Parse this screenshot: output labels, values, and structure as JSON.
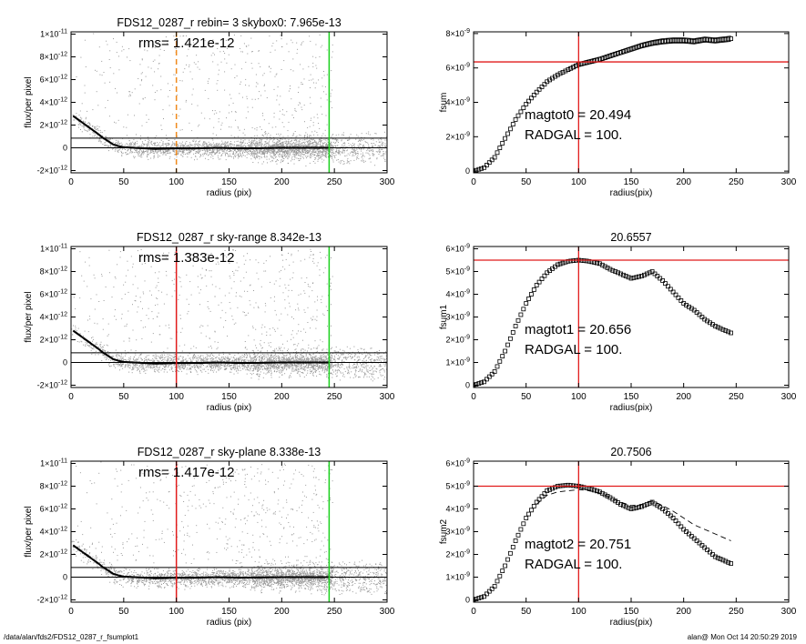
{
  "footer": {
    "left": "/data/alan/fds2/FDS12_0287_r_fsumplot1",
    "right": "alan@  Mon Oct 14 20:50:29 2019"
  },
  "colors": {
    "scatter": "#9a9a9a",
    "profile": "#000000",
    "red_line": "#e11b1b",
    "green_line": "#19d11c",
    "orange_dashed": "#f08a1c",
    "axis": "#000000"
  },
  "chart_data": [
    {
      "id": "flux1",
      "type": "scatter",
      "title": "FDS12_0287_r rebin= 3    skybox0:  7.965e-13",
      "xlabel": "radius (pix)",
      "ylabel": "flux/per pixel",
      "xlim": [
        0,
        300
      ],
      "ylim": [
        -2.2e-12,
        1.02e-11
      ],
      "xticks": [
        0,
        50,
        100,
        150,
        200,
        250,
        300
      ],
      "yticks": [
        {
          "value": 1e-11,
          "mant": "1×10",
          "exp": "-11"
        },
        {
          "value": 8e-12,
          "mant": "8×10",
          "exp": "-12"
        },
        {
          "value": 6e-12,
          "mant": "6×10",
          "exp": "-12"
        },
        {
          "value": 4e-12,
          "mant": "4×10",
          "exp": "-12"
        },
        {
          "value": 2e-12,
          "mant": "2×10",
          "exp": "-12"
        },
        {
          "value": 0,
          "mant": "0",
          "exp": ""
        },
        {
          "value": -2e-12,
          "mant": "-2×10",
          "exp": "-12"
        }
      ],
      "annotation": "rms= 1.421e-12",
      "hlines": [
        0,
        8.5e-13
      ],
      "vlines": [
        {
          "x": 100,
          "color": "orange",
          "dashed": true
        },
        {
          "x": 245,
          "color": "green",
          "dashed": false
        }
      ],
      "profile": {
        "x": [
          2,
          5,
          8,
          11,
          14,
          17,
          20,
          23,
          26,
          30,
          35,
          40,
          45,
          50,
          60,
          70,
          80,
          90,
          100,
          120,
          140,
          160,
          180,
          200,
          220,
          245
        ],
        "y": [
          2.8e-12,
          2.6e-12,
          2.4e-12,
          2.2e-12,
          2e-12,
          1.8e-12,
          1.6e-12,
          1.4e-12,
          1.2e-12,
          9e-13,
          6e-13,
          3e-13,
          1.5e-13,
          5e-14,
          0,
          -5e-14,
          -1e-13,
          -8e-14,
          -5e-14,
          -5e-14,
          0,
          -5e-14,
          -3e-14,
          0,
          0,
          0
        ]
      },
      "scatter_seed": 7
    },
    {
      "id": "fsum",
      "type": "line",
      "title": "",
      "xlabel": "radius(pix)",
      "ylabel": "fsum",
      "xlim": [
        0,
        300
      ],
      "ylim": [
        -1e-10,
        8.1e-09
      ],
      "xticks": [
        0,
        50,
        100,
        150,
        200,
        250,
        300
      ],
      "yticks": [
        {
          "value": 8e-09,
          "mant": "8×10",
          "exp": "-9"
        },
        {
          "value": 6e-09,
          "mant": "6×10",
          "exp": "-9"
        },
        {
          "value": 4e-09,
          "mant": "4×10",
          "exp": "-9"
        },
        {
          "value": 2e-09,
          "mant": "2×10",
          "exp": "-9"
        },
        {
          "value": 0,
          "mant": "0",
          "exp": ""
        }
      ],
      "annotations": [
        "magtot0 =  20.494",
        "RADGAL =    100."
      ],
      "hline": 6.35e-09,
      "vline": 100,
      "series": {
        "x": [
          0,
          10,
          20,
          30,
          40,
          50,
          60,
          70,
          80,
          90,
          100,
          110,
          120,
          130,
          140,
          150,
          160,
          170,
          180,
          190,
          200,
          210,
          220,
          230,
          245
        ],
        "y": [
          0,
          2e-10,
          8e-10,
          1.9e-09,
          3e-09,
          3.9e-09,
          4.6e-09,
          5.2e-09,
          5.6e-09,
          5.9e-09,
          6.2e-09,
          6.35e-09,
          6.5e-09,
          6.7e-09,
          6.9e-09,
          7.1e-09,
          7.3e-09,
          7.45e-09,
          7.55e-09,
          7.6e-09,
          7.6e-09,
          7.55e-09,
          7.65e-09,
          7.6e-09,
          7.7e-09
        ]
      },
      "envelope": 0.02
    },
    {
      "id": "flux2",
      "type": "scatter",
      "title": "FDS12_0287_r sky-range  8.342e-13",
      "xlabel": "radius (pix)",
      "ylabel": "flux/per pixel",
      "xlim": [
        0,
        300
      ],
      "ylim": [
        -2.2e-12,
        1.02e-11
      ],
      "xticks": [
        0,
        50,
        100,
        150,
        200,
        250,
        300
      ],
      "yticks": [
        {
          "value": 1e-11,
          "mant": "1×10",
          "exp": "-11"
        },
        {
          "value": 8e-12,
          "mant": "8×10",
          "exp": "-12"
        },
        {
          "value": 6e-12,
          "mant": "6×10",
          "exp": "-12"
        },
        {
          "value": 4e-12,
          "mant": "4×10",
          "exp": "-12"
        },
        {
          "value": 2e-12,
          "mant": "2×10",
          "exp": "-12"
        },
        {
          "value": 0,
          "mant": "0",
          "exp": ""
        },
        {
          "value": -2e-12,
          "mant": "-2×10",
          "exp": "-12"
        }
      ],
      "annotation": "rms= 1.383e-12",
      "hlines": [
        0,
        8.5e-13
      ],
      "vlines": [
        {
          "x": 100,
          "color": "red",
          "dashed": false
        },
        {
          "x": 245,
          "color": "green",
          "dashed": false
        }
      ],
      "profile": {
        "x": [
          2,
          5,
          8,
          11,
          14,
          17,
          20,
          23,
          26,
          30,
          35,
          40,
          45,
          50,
          60,
          70,
          80,
          90,
          100,
          120,
          140,
          160,
          180,
          200,
          220,
          245
        ],
        "y": [
          2.8e-12,
          2.6e-12,
          2.4e-12,
          2.2e-12,
          2e-12,
          1.8e-12,
          1.6e-12,
          1.4e-12,
          1.2e-12,
          9e-13,
          6e-13,
          3e-13,
          1.5e-13,
          5e-14,
          0,
          -5e-14,
          -1e-13,
          -8e-14,
          -5e-14,
          -5e-14,
          0,
          -5e-14,
          -3e-14,
          0,
          0,
          0
        ]
      },
      "scatter_seed": 13
    },
    {
      "id": "fsum1",
      "type": "line",
      "title": "20.6557",
      "xlabel": "radius(pix)",
      "ylabel": "fsum1",
      "xlim": [
        0,
        300
      ],
      "ylim": [
        -1e-10,
        6.1e-09
      ],
      "xticks": [
        0,
        50,
        100,
        150,
        200,
        250,
        300
      ],
      "yticks": [
        {
          "value": 6e-09,
          "mant": "6×10",
          "exp": "-9"
        },
        {
          "value": 5e-09,
          "mant": "5×10",
          "exp": "-9"
        },
        {
          "value": 4e-09,
          "mant": "4×10",
          "exp": "-9"
        },
        {
          "value": 3e-09,
          "mant": "3×10",
          "exp": "-9"
        },
        {
          "value": 2e-09,
          "mant": "2×10",
          "exp": "-9"
        },
        {
          "value": 1e-09,
          "mant": "1×10",
          "exp": "-9"
        },
        {
          "value": 0,
          "mant": "0",
          "exp": ""
        }
      ],
      "annotations": [
        "magtot1 =  20.656",
        "RADGAL =    100."
      ],
      "hline": 5.5e-09,
      "vline": 100,
      "series": {
        "x": [
          0,
          10,
          20,
          30,
          40,
          50,
          60,
          70,
          80,
          90,
          100,
          110,
          120,
          130,
          140,
          150,
          160,
          170,
          180,
          190,
          200,
          210,
          220,
          230,
          245
        ],
        "y": [
          0,
          1.5e-10,
          6e-10,
          1.5e-09,
          2.6e-09,
          3.6e-09,
          4.4e-09,
          4.95e-09,
          5.3e-09,
          5.45e-09,
          5.5e-09,
          5.45e-09,
          5.35e-09,
          5.1e-09,
          4.9e-09,
          4.7e-09,
          4.8e-09,
          5e-09,
          4.6e-09,
          4.1e-09,
          3.6e-09,
          3.3e-09,
          2.9e-09,
          2.6e-09,
          2.3e-09
        ]
      },
      "envelope": 0
    },
    {
      "id": "flux3",
      "type": "scatter",
      "title": "FDS12_0287_r sky-plane  8.338e-13",
      "xlabel": "radius (pix)",
      "ylabel": "flux/per pixel",
      "xlim": [
        0,
        300
      ],
      "ylim": [
        -2.2e-12,
        1.02e-11
      ],
      "xticks": [
        0,
        50,
        100,
        150,
        200,
        250,
        300
      ],
      "yticks": [
        {
          "value": 1e-11,
          "mant": "1×10",
          "exp": "-11"
        },
        {
          "value": 8e-12,
          "mant": "8×10",
          "exp": "-12"
        },
        {
          "value": 6e-12,
          "mant": "6×10",
          "exp": "-12"
        },
        {
          "value": 4e-12,
          "mant": "4×10",
          "exp": "-12"
        },
        {
          "value": 2e-12,
          "mant": "2×10",
          "exp": "-12"
        },
        {
          "value": 0,
          "mant": "0",
          "exp": ""
        },
        {
          "value": -2e-12,
          "mant": "-2×10",
          "exp": "-12"
        }
      ],
      "annotation": "rms= 1.417e-12",
      "hlines": [
        0,
        8.5e-13
      ],
      "vlines": [
        {
          "x": 100,
          "color": "red",
          "dashed": false
        },
        {
          "x": 245,
          "color": "green",
          "dashed": false
        }
      ],
      "profile": {
        "x": [
          2,
          5,
          8,
          11,
          14,
          17,
          20,
          23,
          26,
          30,
          35,
          40,
          45,
          50,
          60,
          70,
          80,
          90,
          100,
          120,
          140,
          160,
          180,
          200,
          220,
          245
        ],
        "y": [
          2.8e-12,
          2.6e-12,
          2.4e-12,
          2.2e-12,
          2e-12,
          1.8e-12,
          1.6e-12,
          1.4e-12,
          1.2e-12,
          9e-13,
          6e-13,
          3e-13,
          1.5e-13,
          5e-14,
          0,
          -5e-14,
          -1e-13,
          -8e-14,
          -5e-14,
          -5e-14,
          0,
          -5e-14,
          -3e-14,
          0,
          0,
          0
        ]
      },
      "scatter_seed": 29
    },
    {
      "id": "fsum2",
      "type": "line",
      "title": "20.7506",
      "xlabel": "radius(pix)",
      "ylabel": "fsum2",
      "xlim": [
        0,
        300
      ],
      "ylim": [
        -1e-10,
        6.1e-09
      ],
      "xticks": [
        0,
        50,
        100,
        150,
        200,
        250,
        300
      ],
      "yticks": [
        {
          "value": 6e-09,
          "mant": "6×10",
          "exp": "-9"
        },
        {
          "value": 5e-09,
          "mant": "5×10",
          "exp": "-9"
        },
        {
          "value": 4e-09,
          "mant": "4×10",
          "exp": "-9"
        },
        {
          "value": 3e-09,
          "mant": "3×10",
          "exp": "-9"
        },
        {
          "value": 2e-09,
          "mant": "2×10",
          "exp": "-9"
        },
        {
          "value": 1e-09,
          "mant": "1×10",
          "exp": "-9"
        },
        {
          "value": 0,
          "mant": "0",
          "exp": ""
        }
      ],
      "annotations": [
        "magtot2 =  20.751",
        "RADGAL =    100."
      ],
      "hline": 5e-09,
      "vline": 100,
      "series": {
        "x": [
          0,
          10,
          20,
          30,
          40,
          50,
          60,
          70,
          80,
          90,
          100,
          110,
          120,
          130,
          140,
          150,
          160,
          170,
          180,
          190,
          200,
          210,
          220,
          230,
          245
        ],
        "y": [
          0,
          1.5e-10,
          6e-10,
          1.5e-09,
          2.6e-09,
          3.6e-09,
          4.3e-09,
          4.8e-09,
          5e-09,
          5.05e-09,
          5e-09,
          4.9e-09,
          4.75e-09,
          4.5e-09,
          4.2e-09,
          4e-09,
          4.1e-09,
          4.3e-09,
          4e-09,
          3.6e-09,
          3.1e-09,
          2.7e-09,
          2.3e-09,
          1.9e-09,
          1.6e-09
        ]
      },
      "dashed_series": {
        "x": [
          60,
          70,
          80,
          90,
          100,
          110,
          120,
          130,
          140,
          150,
          160,
          170,
          180,
          190,
          200,
          210,
          220,
          230,
          245
        ],
        "y": [
          4.2e-09,
          4.6e-09,
          4.75e-09,
          4.8e-09,
          4.85e-09,
          4.8e-09,
          4.7e-09,
          4.5e-09,
          4.3e-09,
          4.15e-09,
          4.2e-09,
          4.35e-09,
          4.15e-09,
          3.9e-09,
          3.6e-09,
          3.3e-09,
          3.1e-09,
          2.9e-09,
          2.6e-09
        ]
      },
      "envelope": 0
    }
  ]
}
